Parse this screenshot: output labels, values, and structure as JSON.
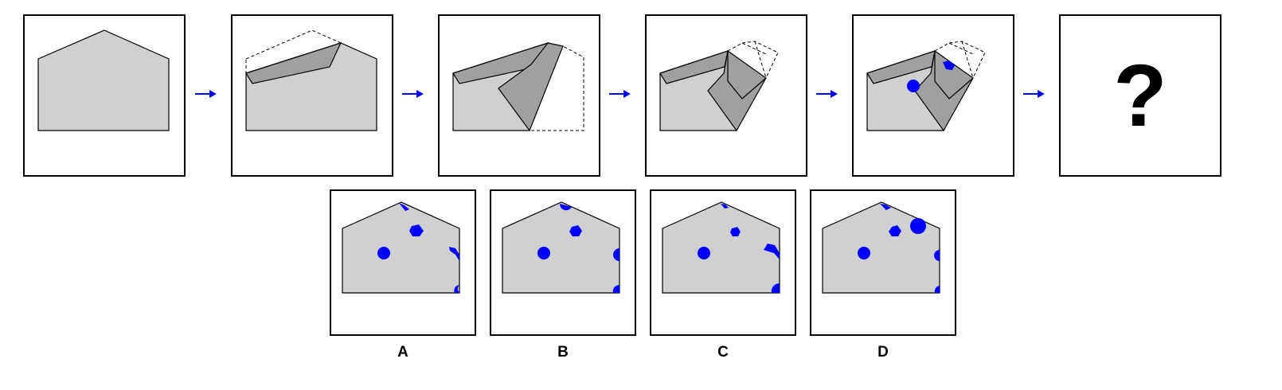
{
  "question_mark": "?",
  "options": [
    {
      "label": "A"
    },
    {
      "label": "B"
    },
    {
      "label": "C"
    },
    {
      "label": "D"
    }
  ],
  "colors": {
    "paper": "#d0d0d0",
    "paper_fold": "#a0a0a0",
    "marker": "#0000ff",
    "arrow": "#0000ff",
    "outline": "#000000"
  },
  "icons": {
    "arrow": "right-arrow-icon",
    "punch_hole": "circle-hole",
    "hexagon_hole": "hexagon-hole"
  }
}
